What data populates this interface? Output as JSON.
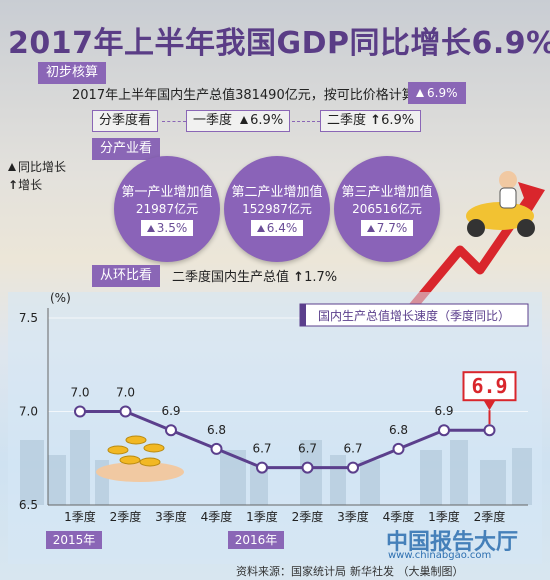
{
  "title": "2017年上半年我国GDP同比增长6.9%",
  "preliminary": {
    "tag": "初步核算",
    "text": "2017年上半年国内生产总值381490亿元，按可比价格计算",
    "growth": "6.9%"
  },
  "quarter": {
    "tag": "分季度看",
    "q1_label": "一季度",
    "q1_value": "6.9%",
    "q2_label": "二季度",
    "q2_value": "6.9%"
  },
  "industry": {
    "tag": "分产业看",
    "items": [
      {
        "name": "第一产业增加值",
        "amount": "21987亿元",
        "growth": "3.5%"
      },
      {
        "name": "第二产业增加值",
        "amount": "152987亿元",
        "growth": "6.4%"
      },
      {
        "name": "第三产业增加值",
        "amount": "206516亿元",
        "growth": "7.7%"
      }
    ]
  },
  "legend": {
    "yoy": "同比增长",
    "growth": "增长"
  },
  "qoq": {
    "tag": "从环比看",
    "text": "二季度国内生产总值",
    "value": "1.7%"
  },
  "chart_data": {
    "type": "line",
    "title": "国内生产总值增长速度（季度同比）",
    "ylabel": "(%)",
    "ylim": [
      6.5,
      7.5
    ],
    "yticks": [
      "6.5",
      "7.0",
      "7.5"
    ],
    "categories": [
      "1季度",
      "2季度",
      "3季度",
      "4季度",
      "1季度",
      "2季度",
      "3季度",
      "4季度",
      "1季度",
      "2季度"
    ],
    "year_labels": [
      {
        "label": "2015年",
        "start_index": 0
      },
      {
        "label": "2016年",
        "start_index": 4
      }
    ],
    "values": [
      7.0,
      7.0,
      6.9,
      6.8,
      6.7,
      6.7,
      6.7,
      6.8,
      6.9,
      6.9
    ],
    "value_labels": [
      "7.0",
      "7.0",
      "6.9",
      "6.8",
      "6.7",
      "6.7",
      "6.7",
      "6.8",
      "6.9",
      "6.9"
    ],
    "highlight_label": "6.9",
    "line_color": "#5b3f8c",
    "highlight_color": "#d9262c"
  },
  "footer": {
    "source": "资料来源：国家统计局",
    "credit": "新华社发 （大巢制图）"
  },
  "watermark": {
    "text": "中国报告大厅",
    "url": "www.chinabgao.com"
  }
}
